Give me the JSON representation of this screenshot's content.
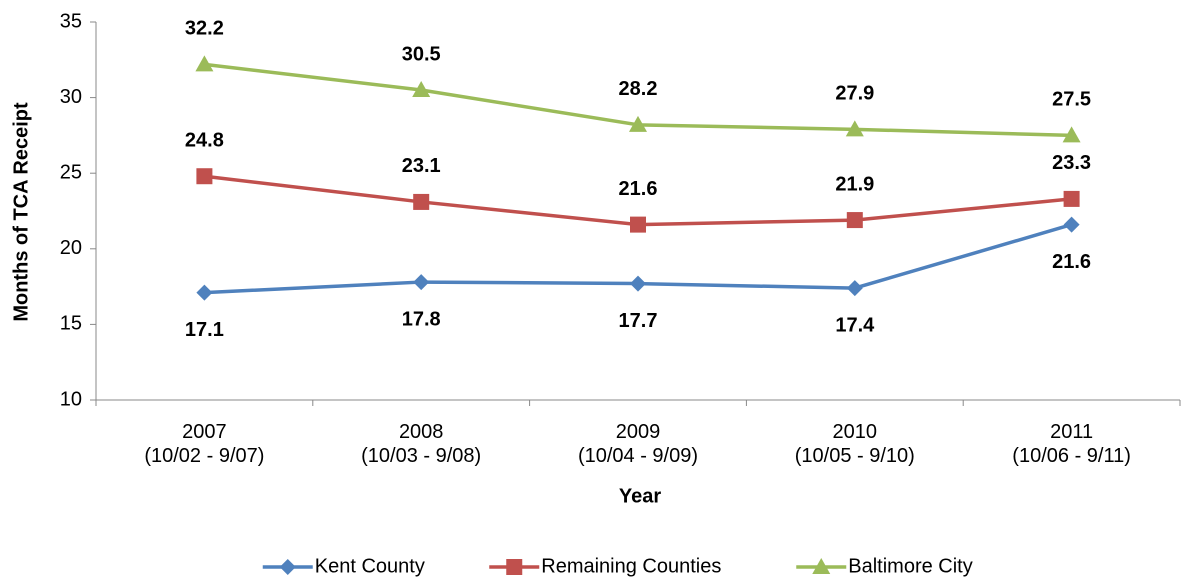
{
  "chart_data": {
    "type": "line",
    "y_label": "Months of TCA Receipt",
    "x_label": "Year",
    "categories": [
      "2007\n(10/02 - 9/07)",
      "2008\n(10/03 - 9/08)",
      "2009\n(10/04 - 9/09)",
      "2010\n(10/05 - 9/10)",
      "2011\n(10/06 - 9/11)"
    ],
    "series": [
      {
        "name": "Kent County",
        "color": "#4f81bd",
        "marker": "diamond",
        "values": [
          17.1,
          17.8,
          17.7,
          17.4,
          21.6
        ]
      },
      {
        "name": "Remaining Counties",
        "color": "#c0504d",
        "marker": "square",
        "values": [
          24.8,
          23.1,
          21.6,
          21.9,
          23.3
        ]
      },
      {
        "name": "Baltimore City",
        "color": "#9bbb59",
        "marker": "triangle",
        "values": [
          32.2,
          30.5,
          28.2,
          27.9,
          27.5
        ]
      }
    ],
    "ylim": [
      10,
      35
    ],
    "yticks": [
      10,
      15,
      20,
      25,
      30,
      35
    ],
    "grid": false,
    "legend": "bottom"
  }
}
